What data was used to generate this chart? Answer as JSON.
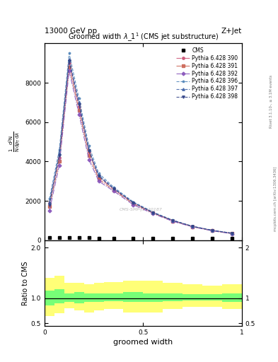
{
  "title": "Groomed width $\\lambda\\_1^1$ (CMS jet substructure)",
  "top_left_label": "13000 GeV pp",
  "top_right_label": "Z+Jet",
  "right_label1": "Rivet 3.1.10-, ≥ 3.1M events",
  "right_label2": "mcplots.cern.ch [arXiv:1306.3436]",
  "xlabel": "groomed width",
  "ylabel_top": "1 / mathrm{N} dmathrm{N} / d lambda",
  "ylabel2": "Ratio to CMS",
  "watermark": "CMS-SMP-J1920187",
  "cms_data_x": [
    0.025,
    0.075,
    0.125,
    0.175,
    0.225,
    0.275,
    0.35,
    0.45,
    0.55,
    0.65,
    0.75,
    0.85,
    0.95
  ],
  "cms_data_y": [
    120,
    130,
    125,
    120,
    118,
    115,
    112,
    110,
    108,
    105,
    103,
    100,
    98
  ],
  "line_x": [
    0.025,
    0.075,
    0.125,
    0.175,
    0.225,
    0.275,
    0.35,
    0.45,
    0.55,
    0.65,
    0.75,
    0.85,
    0.95
  ],
  "lines": [
    {
      "label": "Pythia 6.428 390",
      "color": "#cc5577",
      "marker": "o",
      "linestyle": "-.",
      "y": [
        1900,
        4200,
        9000,
        6800,
        4500,
        3200,
        2600,
        1900,
        1400,
        1000,
        700,
        500,
        350
      ]
    },
    {
      "label": "Pythia 6.428 391",
      "color": "#cc6655",
      "marker": "s",
      "linestyle": "-.",
      "y": [
        1700,
        4000,
        8800,
        6600,
        4300,
        3100,
        2550,
        1850,
        1380,
        980,
        690,
        490,
        340
      ]
    },
    {
      "label": "Pythia 6.428 392",
      "color": "#8855bb",
      "marker": "D",
      "linestyle": "-.",
      "y": [
        1500,
        3800,
        8600,
        6400,
        4100,
        3000,
        2500,
        1800,
        1350,
        960,
        680,
        480,
        330
      ]
    },
    {
      "label": "Pythia 6.428 396",
      "color": "#5588bb",
      "marker": "*",
      "linestyle": "--",
      "y": [
        2100,
        4600,
        9500,
        7200,
        4800,
        3400,
        2700,
        1950,
        1430,
        1020,
        710,
        510,
        360
      ]
    },
    {
      "label": "Pythia 6.428 397",
      "color": "#4466aa",
      "marker": "^",
      "linestyle": "--",
      "y": [
        1950,
        4400,
        9200,
        7000,
        4600,
        3300,
        2650,
        1920,
        1410,
        1010,
        705,
        505,
        355
      ]
    },
    {
      "label": "Pythia 6.428 398",
      "color": "#334488",
      "marker": "v",
      "linestyle": "--",
      "y": [
        1800,
        4300,
        9100,
        6900,
        4550,
        3250,
        2620,
        1900,
        1400,
        1005,
        702,
        502,
        352
      ]
    }
  ],
  "ratio_x_edges": [
    0.0,
    0.05,
    0.1,
    0.15,
    0.2,
    0.25,
    0.3,
    0.4,
    0.5,
    0.6,
    0.7,
    0.8,
    0.9,
    1.0
  ],
  "ratio_yellow_low": [
    0.65,
    0.7,
    0.8,
    0.75,
    0.72,
    0.75,
    0.78,
    0.72,
    0.72,
    0.78,
    0.82,
    0.82,
    0.78
  ],
  "ratio_yellow_high": [
    1.4,
    1.45,
    1.3,
    1.3,
    1.28,
    1.3,
    1.32,
    1.35,
    1.35,
    1.3,
    1.28,
    1.25,
    1.28
  ],
  "ratio_green_low": [
    0.85,
    0.9,
    0.93,
    0.9,
    0.92,
    0.93,
    0.94,
    0.92,
    0.93,
    0.94,
    0.95,
    0.95,
    0.93
  ],
  "ratio_green_high": [
    1.15,
    1.18,
    1.1,
    1.12,
    1.1,
    1.1,
    1.1,
    1.12,
    1.1,
    1.1,
    1.08,
    1.08,
    1.1
  ],
  "ylim_main": [
    0,
    10000
  ],
  "yticks_main": [
    0,
    2000,
    4000,
    6000,
    8000
  ],
  "ylim_ratio": [
    0.45,
    2.15
  ],
  "yticks_ratio": [
    0.5,
    1.0,
    2.0
  ],
  "xlim": [
    0.0,
    1.0
  ],
  "xticks": [
    0.0,
    0.5,
    1.0
  ],
  "background_color": "#ffffff",
  "yellow_color": "#ffff77",
  "green_color": "#77ff77",
  "fig_width": 3.93,
  "fig_height": 5.12,
  "dpi": 100
}
